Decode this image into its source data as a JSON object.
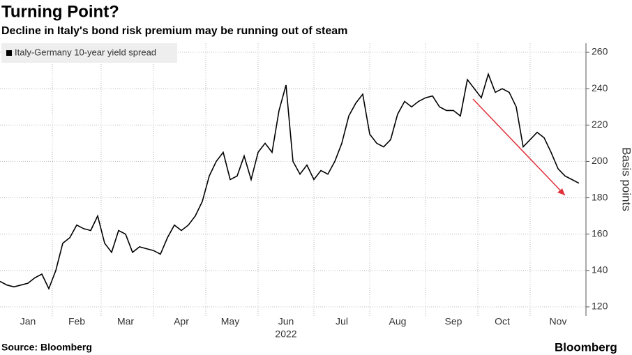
{
  "title": "Turning Point?",
  "subtitle": "Decline in Italy's bond risk premium may be running out of steam",
  "source": "Source: Bloomberg",
  "brand": "Bloomberg",
  "chart_data": {
    "type": "line",
    "categories": [
      null,
      null,
      null,
      null,
      "Jan",
      null,
      null,
      null,
      null,
      null,
      null,
      "Feb",
      null,
      null,
      null,
      null,
      null,
      null,
      "Mar",
      null,
      null,
      null,
      null,
      null,
      null,
      null,
      "Apr",
      null,
      null,
      null,
      null,
      null,
      null,
      "May",
      null,
      null,
      null,
      null,
      null,
      null,
      null,
      "Jun",
      null,
      null,
      null,
      null,
      null,
      null,
      null,
      "Jul",
      null,
      null,
      null,
      null,
      null,
      null,
      null,
      "Aug",
      null,
      null,
      null,
      null,
      null,
      null,
      null,
      "Sep",
      null,
      null,
      null,
      null,
      null,
      null,
      "Oct",
      null,
      null,
      null,
      null,
      null,
      null,
      null,
      "Nov",
      null,
      null,
      null
    ],
    "x_axis_year": "2022",
    "y_label": "Basis points",
    "series": [
      {
        "name": "Italy-Germany 10-year yield spread",
        "color": "#000000",
        "values": [
          134,
          132,
          131,
          132,
          133,
          136,
          138,
          130,
          140,
          155,
          158,
          165,
          163,
          162,
          170,
          155,
          150,
          162,
          160,
          150,
          153,
          152,
          151,
          149,
          158,
          165,
          162,
          165,
          170,
          178,
          192,
          200,
          205,
          190,
          192,
          203,
          190,
          205,
          210,
          205,
          228,
          242,
          200,
          193,
          198,
          190,
          195,
          193,
          200,
          210,
          225,
          232,
          237,
          215,
          210,
          208,
          212,
          226,
          233,
          230,
          233,
          235,
          236,
          230,
          228,
          228,
          225,
          245,
          240,
          235,
          248,
          238,
          240,
          238,
          230,
          208,
          212,
          216,
          213,
          205,
          196,
          192,
          190,
          188
        ]
      }
    ],
    "ylim": [
      115,
      265
    ],
    "yticks": [
      120,
      140,
      160,
      180,
      200,
      220,
      240,
      260
    ],
    "grid": true
  }
}
